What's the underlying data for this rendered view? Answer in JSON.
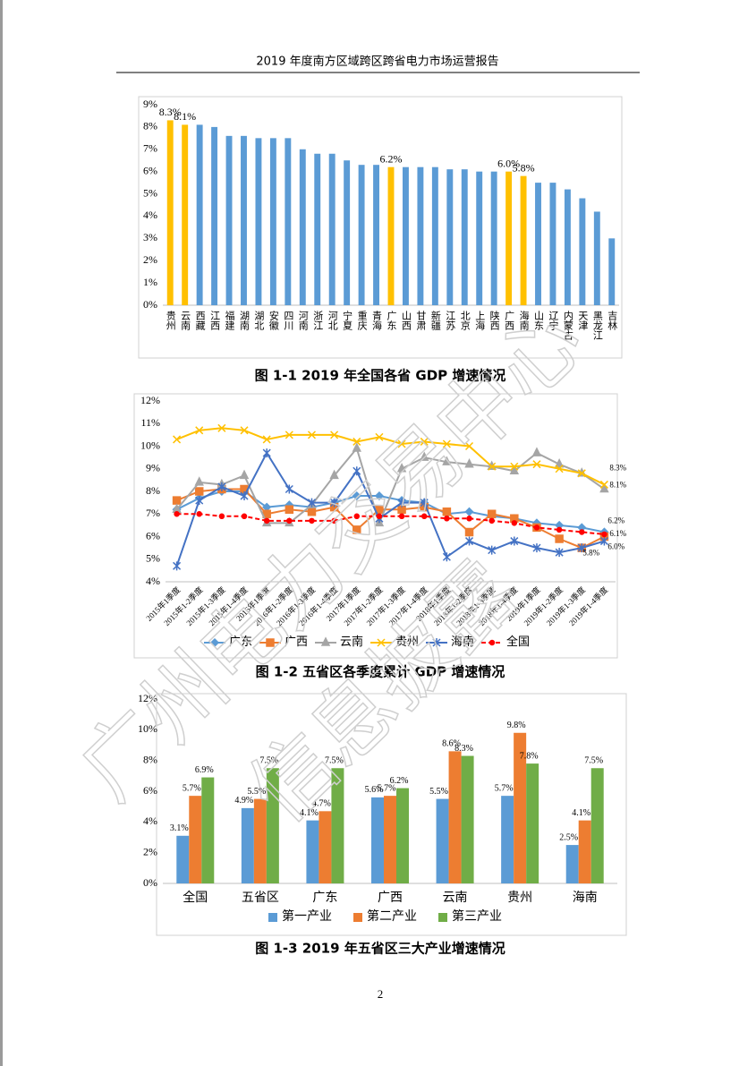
{
  "header": {
    "title": "2019 年度南方区域跨区跨省电力市场运营报告"
  },
  "watermark": [
    "广州电力交易中心",
    "信息披露"
  ],
  "page_number": "2",
  "chart_data": [
    {
      "type": "bar",
      "caption": "图 1-1   2019 年全国各省 GDP 增速情况",
      "categories": [
        "贵州",
        "云南",
        "西藏",
        "江西",
        "福建",
        "湖南",
        "湖北",
        "安徽",
        "四川",
        "河南",
        "浙江",
        "河北",
        "宁夏",
        "重庆",
        "青海",
        "广东",
        "山西",
        "甘肃",
        "新疆",
        "江苏",
        "北京",
        "上海",
        "陕西",
        "广西",
        "海南",
        "山东",
        "辽宁",
        "内蒙古",
        "天津",
        "黑龙江",
        "吉林"
      ],
      "values": [
        8.3,
        8.1,
        8.1,
        8.0,
        7.6,
        7.6,
        7.5,
        7.5,
        7.5,
        7.0,
        6.8,
        6.8,
        6.5,
        6.3,
        6.3,
        6.2,
        6.2,
        6.2,
        6.2,
        6.1,
        6.1,
        6.0,
        6.0,
        6.0,
        5.8,
        5.5,
        5.5,
        5.2,
        4.8,
        4.2,
        3.0
      ],
      "value_labels": [
        "8.3%",
        "8.1%",
        null,
        null,
        null,
        null,
        null,
        null,
        null,
        null,
        null,
        null,
        null,
        null,
        null,
        "6.2%",
        null,
        null,
        null,
        null,
        null,
        null,
        null,
        "6.0%",
        "5.8%",
        null,
        null,
        null,
        null,
        null,
        null
      ],
      "colors": [
        "#FFC000",
        "#FFC000",
        "#5B9BD5",
        "#5B9BD5",
        "#5B9BD5",
        "#5B9BD5",
        "#5B9BD5",
        "#5B9BD5",
        "#5B9BD5",
        "#5B9BD5",
        "#5B9BD5",
        "#5B9BD5",
        "#5B9BD5",
        "#5B9BD5",
        "#5B9BD5",
        "#FFC000",
        "#5B9BD5",
        "#5B9BD5",
        "#5B9BD5",
        "#5B9BD5",
        "#5B9BD5",
        "#5B9BD5",
        "#5B9BD5",
        "#FFC000",
        "#FFC000",
        "#5B9BD5",
        "#5B9BD5",
        "#5B9BD5",
        "#5B9BD5",
        "#5B9BD5",
        "#5B9BD5"
      ],
      "ylim": [
        0,
        9
      ],
      "yticks": [
        {
          "value": 0,
          "label": "0%"
        },
        {
          "value": 1,
          "label": "1%"
        },
        {
          "value": 2,
          "label": "2%"
        },
        {
          "value": 3,
          "label": "3%"
        },
        {
          "value": 4,
          "label": "4%"
        },
        {
          "value": 5,
          "label": "5%"
        },
        {
          "value": 6,
          "label": "6%"
        },
        {
          "value": 7,
          "label": "7%"
        },
        {
          "value": 8,
          "label": "8%"
        },
        {
          "value": 9,
          "label": "9%"
        }
      ],
      "grid": false
    },
    {
      "type": "line",
      "caption": "图 1-2   五省区各季度累计 GDP 增速情况",
      "categories": [
        "2015年1季度",
        "2015年1-2季度",
        "2015年1-3季度",
        "2015年1-4季度",
        "2016年1季度",
        "2016年1-2季度",
        "2016年1-3季度",
        "2016年1-4季度",
        "2017年1季度",
        "2017年1-2季度",
        "2017年1-3季度",
        "2017年1-4季度",
        "2018年1季度",
        "2018年1-2季度",
        "2018年1-3季度",
        "2018年1-4季度",
        "2019年1季度",
        "2019年1-2季度",
        "2019年1-3季度",
        "2019年1-4季度"
      ],
      "series": [
        {
          "name": "广东",
          "color": "#5B9BD5",
          "marker": "diamond",
          "values": [
            7.2,
            7.7,
            8.0,
            8.0,
            7.3,
            7.4,
            7.3,
            7.5,
            7.8,
            7.8,
            7.6,
            7.5,
            7.0,
            7.1,
            6.9,
            6.8,
            6.6,
            6.5,
            6.4,
            6.2
          ],
          "value_labels": [
            null,
            null,
            null,
            null,
            null,
            null,
            null,
            null,
            null,
            null,
            null,
            null,
            null,
            null,
            null,
            null,
            null,
            null,
            null,
            "6.2%"
          ]
        },
        {
          "name": "广西",
          "color": "#ED7D31",
          "marker": "square",
          "values": [
            7.6,
            8.0,
            8.1,
            8.1,
            7.0,
            7.2,
            7.1,
            7.3,
            6.3,
            7.2,
            7.2,
            7.3,
            7.1,
            6.2,
            7.0,
            6.8,
            6.4,
            5.9,
            5.5,
            6.0
          ],
          "value_labels": [
            null,
            null,
            null,
            null,
            null,
            null,
            null,
            null,
            null,
            null,
            null,
            null,
            null,
            null,
            null,
            null,
            null,
            null,
            null,
            "6.0%"
          ]
        },
        {
          "name": "云南",
          "color": "#A5A5A5",
          "marker": "triangle",
          "values": [
            7.2,
            8.4,
            8.3,
            8.7,
            6.6,
            6.6,
            7.4,
            8.7,
            9.9,
            6.6,
            9.0,
            9.5,
            9.3,
            9.2,
            9.1,
            8.9,
            9.7,
            9.2,
            8.8,
            8.1
          ],
          "value_labels": [
            null,
            null,
            null,
            null,
            null,
            null,
            null,
            null,
            null,
            null,
            null,
            null,
            null,
            null,
            null,
            null,
            null,
            null,
            null,
            "8.1%"
          ]
        },
        {
          "name": "贵州",
          "color": "#FFC000",
          "marker": "x",
          "values": [
            10.3,
            10.7,
            10.8,
            10.7,
            10.3,
            10.5,
            10.5,
            10.5,
            10.2,
            10.4,
            10.1,
            10.2,
            10.1,
            10.0,
            9.1,
            9.1,
            9.2,
            9.0,
            8.8,
            8.3
          ],
          "value_labels": [
            null,
            null,
            null,
            null,
            null,
            null,
            null,
            null,
            null,
            null,
            null,
            null,
            null,
            null,
            null,
            null,
            null,
            null,
            null,
            "8.3%"
          ]
        },
        {
          "name": "海南",
          "color": "#4472C4",
          "marker": "star",
          "values": [
            4.7,
            7.6,
            8.2,
            7.8,
            9.7,
            8.1,
            7.5,
            7.5,
            8.9,
            6.8,
            7.5,
            7.5,
            5.1,
            5.8,
            5.4,
            5.8,
            5.5,
            5.3,
            5.5,
            5.8
          ],
          "value_labels": [
            null,
            null,
            null,
            null,
            null,
            null,
            null,
            null,
            null,
            null,
            null,
            null,
            null,
            null,
            null,
            null,
            null,
            null,
            null,
            "5.8%"
          ]
        },
        {
          "name": "全国",
          "color": "#FF0000",
          "marker": "circle",
          "dash": true,
          "values": [
            7.0,
            7.0,
            6.9,
            6.9,
            6.7,
            6.7,
            6.7,
            6.7,
            6.9,
            6.9,
            6.9,
            6.9,
            6.8,
            6.8,
            6.7,
            6.6,
            6.4,
            6.3,
            6.2,
            6.1
          ],
          "value_labels": [
            null,
            null,
            null,
            null,
            null,
            null,
            null,
            null,
            null,
            null,
            null,
            null,
            null,
            null,
            null,
            null,
            null,
            null,
            null,
            "6.1%"
          ]
        }
      ],
      "ylim": [
        4,
        12
      ],
      "yticks": [
        {
          "value": 4,
          "label": "4%"
        },
        {
          "value": 5,
          "label": "5%"
        },
        {
          "value": 6,
          "label": "6%"
        },
        {
          "value": 7,
          "label": "7%"
        },
        {
          "value": 8,
          "label": "8%"
        },
        {
          "value": 9,
          "label": "9%"
        },
        {
          "value": 10,
          "label": "10%"
        },
        {
          "value": 11,
          "label": "11%"
        },
        {
          "value": 12,
          "label": "12%"
        }
      ],
      "grid": false,
      "legend": "bottom"
    },
    {
      "type": "bar",
      "caption": "图 1-3   2019 年五省区三大产业增速情况",
      "categories": [
        "全国",
        "五省区",
        "广东",
        "广西",
        "云南",
        "贵州",
        "海南"
      ],
      "series": [
        {
          "name": "第一产业",
          "color": "#5B9BD5",
          "values": [
            3.1,
            4.9,
            4.1,
            5.6,
            5.5,
            5.7,
            2.5
          ],
          "value_labels": [
            "3.1%",
            "4.9%",
            "4.1%",
            "5.6%",
            "5.5%",
            "5.7%",
            "2.5%"
          ]
        },
        {
          "name": "第二产业",
          "color": "#ED7D31",
          "values": [
            5.7,
            5.5,
            4.7,
            5.7,
            8.6,
            9.8,
            4.1
          ],
          "value_labels": [
            "5.7%",
            "5.5%",
            "4.7%",
            "5.7%",
            "8.6%",
            "9.8%",
            "4.1%"
          ]
        },
        {
          "name": "第三产业",
          "color": "#70AD47",
          "values": [
            6.9,
            7.5,
            7.5,
            6.2,
            8.3,
            7.8,
            7.5
          ],
          "value_labels": [
            "6.9%",
            "7.5%",
            "7.5%",
            "6.2%",
            "8.3%",
            "7.8%",
            "7.5%"
          ]
        }
      ],
      "ylim": [
        0,
        12
      ],
      "yticks": [
        {
          "value": 0,
          "label": "0%"
        },
        {
          "value": 2,
          "label": "2%"
        },
        {
          "value": 4,
          "label": "4%"
        },
        {
          "value": 6,
          "label": "6%"
        },
        {
          "value": 8,
          "label": "8%"
        },
        {
          "value": 10,
          "label": "10%"
        },
        {
          "value": 12,
          "label": "12%"
        }
      ],
      "grid": false,
      "legend": "bottom"
    }
  ]
}
